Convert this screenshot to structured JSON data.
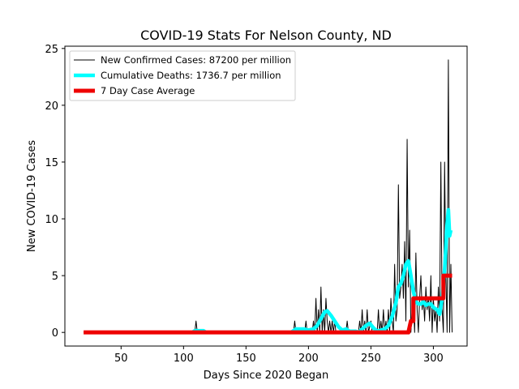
{
  "chart_data": {
    "type": "line",
    "title": "COVID-19 Stats For Nelson County, ND",
    "xlabel": "Days Since 2020 Began",
    "ylabel": "New COVID-19 Cases",
    "xlim": [
      5,
      327
    ],
    "ylim": [
      -1.2,
      25.2
    ],
    "xticks": [
      50,
      100,
      150,
      200,
      250,
      300
    ],
    "yticks": [
      0,
      5,
      10,
      15,
      20,
      25
    ],
    "grid": false,
    "legend_position": "top-left",
    "series": [
      {
        "name": "New Confirmed Cases: 87200 per million",
        "color": "#000000",
        "style": "thin",
        "points": [
          [
            20,
            0
          ],
          [
            109,
            0
          ],
          [
            110,
            1
          ],
          [
            111,
            0
          ],
          [
            188,
            0
          ],
          [
            189,
            1
          ],
          [
            190,
            0
          ],
          [
            197,
            0
          ],
          [
            198,
            1
          ],
          [
            199,
            0
          ],
          [
            203,
            0
          ],
          [
            204,
            1
          ],
          [
            205,
            0
          ],
          [
            206,
            3
          ],
          [
            207,
            0
          ],
          [
            208,
            2
          ],
          [
            209,
            0
          ],
          [
            210,
            4
          ],
          [
            211,
            0
          ],
          [
            212,
            2
          ],
          [
            213,
            0
          ],
          [
            214,
            3
          ],
          [
            215,
            1
          ],
          [
            216,
            0
          ],
          [
            217,
            1
          ],
          [
            218,
            0
          ],
          [
            219,
            1
          ],
          [
            220,
            0
          ],
          [
            221,
            1
          ],
          [
            222,
            0
          ],
          [
            230,
            0
          ],
          [
            231,
            1
          ],
          [
            232,
            0
          ],
          [
            240,
            0
          ],
          [
            241,
            1
          ],
          [
            242,
            0
          ],
          [
            243,
            2
          ],
          [
            244,
            0
          ],
          [
            245,
            1
          ],
          [
            246,
            0
          ],
          [
            247,
            2
          ],
          [
            248,
            0
          ],
          [
            250,
            1
          ],
          [
            251,
            0
          ],
          [
            255,
            0
          ],
          [
            256,
            2
          ],
          [
            257,
            0
          ],
          [
            258,
            1
          ],
          [
            259,
            0
          ],
          [
            260,
            2
          ],
          [
            261,
            0
          ],
          [
            262,
            1
          ],
          [
            263,
            0
          ],
          [
            264,
            2
          ],
          [
            265,
            0
          ],
          [
            266,
            3
          ],
          [
            267,
            1
          ],
          [
            268,
            0
          ],
          [
            269,
            6
          ],
          [
            270,
            1
          ],
          [
            271,
            2
          ],
          [
            272,
            13
          ],
          [
            273,
            3
          ],
          [
            274,
            4
          ],
          [
            275,
            6
          ],
          [
            276,
            3
          ],
          [
            277,
            8
          ],
          [
            278,
            1
          ],
          [
            279,
            17
          ],
          [
            280,
            4
          ],
          [
            281,
            9
          ],
          [
            282,
            0
          ],
          [
            283,
            2
          ],
          [
            284,
            3
          ],
          [
            285,
            0
          ],
          [
            286,
            7
          ],
          [
            287,
            2
          ],
          [
            288,
            0
          ],
          [
            289,
            3
          ],
          [
            290,
            5
          ],
          [
            291,
            2
          ],
          [
            292,
            3
          ],
          [
            293,
            1
          ],
          [
            294,
            4
          ],
          [
            295,
            2
          ],
          [
            296,
            3
          ],
          [
            297,
            1
          ],
          [
            298,
            5
          ],
          [
            299,
            0
          ],
          [
            300,
            3
          ],
          [
            301,
            1
          ],
          [
            302,
            2
          ],
          [
            303,
            0
          ],
          [
            304,
            4
          ],
          [
            305,
            1
          ],
          [
            306,
            15
          ],
          [
            307,
            2
          ],
          [
            308,
            0
          ],
          [
            309,
            15
          ],
          [
            310,
            5
          ],
          [
            311,
            0
          ],
          [
            312,
            24
          ],
          [
            313,
            0
          ],
          [
            314,
            6
          ],
          [
            315,
            0
          ]
        ]
      },
      {
        "name": "Cumulative Deaths: 1736.7 per million",
        "color": "#00ffff",
        "style": "thick",
        "points": [
          [
            107,
            0
          ],
          [
            109,
            0.15
          ],
          [
            112,
            0.15
          ],
          [
            116,
            0.15
          ],
          [
            118,
            0
          ],
          [
            186,
            0
          ],
          [
            190,
            0.3
          ],
          [
            196,
            0.3
          ],
          [
            200,
            0.2
          ],
          [
            204,
            0.3
          ],
          [
            207,
            0.6
          ],
          [
            210,
            1.2
          ],
          [
            213,
            1.8
          ],
          [
            215,
            1.9
          ],
          [
            218,
            1.5
          ],
          [
            221,
            1.0
          ],
          [
            224,
            0.5
          ],
          [
            227,
            0.2
          ],
          [
            230,
            0.3
          ],
          [
            233,
            0.1
          ],
          [
            238,
            0.1
          ],
          [
            240,
            0
          ],
          [
            243,
            0.3
          ],
          [
            246,
            0.6
          ],
          [
            249,
            0.8
          ],
          [
            252,
            0.4
          ],
          [
            255,
            0.1
          ],
          [
            258,
            0.2
          ],
          [
            261,
            0.3
          ],
          [
            264,
            0.6
          ],
          [
            267,
            1.4
          ],
          [
            270,
            2.6
          ],
          [
            272,
            4.0
          ],
          [
            274,
            4.3
          ],
          [
            276,
            5.0
          ],
          [
            278,
            6.0
          ],
          [
            280,
            6.3
          ],
          [
            282,
            5.0
          ],
          [
            284,
            3.6
          ],
          [
            286,
            2.7
          ],
          [
            288,
            2.5
          ],
          [
            290,
            2.5
          ],
          [
            292,
            2.7
          ],
          [
            294,
            2.4
          ],
          [
            296,
            2.5
          ],
          [
            298,
            2.5
          ],
          [
            300,
            2.2
          ],
          [
            303,
            2.0
          ],
          [
            305,
            1.6
          ],
          [
            307,
            3.0
          ],
          [
            309,
            5.5
          ],
          [
            311,
            9.5
          ],
          [
            312,
            10.8
          ],
          [
            313,
            8.5
          ],
          [
            314,
            9.0
          ]
        ]
      },
      {
        "name": "7 Day Case Average",
        "color": "#ee0000",
        "style": "extra-thick",
        "points": [
          [
            20,
            0
          ],
          [
            280,
            0
          ],
          [
            282,
            1
          ],
          [
            284,
            1
          ],
          [
            284,
            3
          ],
          [
            308,
            3
          ],
          [
            308,
            5
          ],
          [
            315,
            5
          ]
        ]
      }
    ]
  }
}
